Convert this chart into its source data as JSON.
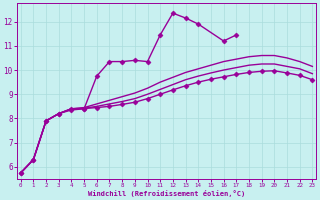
{
  "xlabel": "Windchill (Refroidissement éolien,°C)",
  "bg_color": "#c8f0f0",
  "grid_color": "#aadddd",
  "line_color": "#990099",
  "x_ticks": [
    0,
    1,
    2,
    3,
    4,
    5,
    6,
    7,
    8,
    9,
    10,
    11,
    12,
    13,
    14,
    15,
    16,
    17,
    18,
    19,
    20,
    21,
    22,
    23
  ],
  "y_ticks": [
    6,
    7,
    8,
    9,
    10,
    11,
    12
  ],
  "xlim": [
    -0.3,
    23.3
  ],
  "ylim": [
    5.5,
    12.75
  ],
  "lines": [
    {
      "x": [
        0,
        1,
        2,
        3,
        4,
        5,
        6,
        7,
        8,
        9,
        10,
        11,
        12,
        13,
        14,
        16,
        17
      ],
      "y": [
        5.75,
        6.3,
        7.9,
        8.2,
        8.35,
        8.4,
        9.75,
        10.35,
        10.35,
        10.4,
        10.35,
        11.45,
        12.35,
        12.15,
        11.9,
        11.2,
        11.45
      ],
      "marker": "D",
      "markersize": 2.5,
      "linewidth": 1.0
    },
    {
      "x": [
        0,
        1,
        2,
        3,
        4,
        5,
        6,
        7,
        8,
        9,
        10,
        11,
        12,
        13,
        14,
        15,
        16,
        17,
        18,
        19,
        20,
        21,
        22,
        23
      ],
      "y": [
        5.75,
        6.3,
        7.9,
        8.2,
        8.4,
        8.45,
        8.6,
        8.75,
        8.9,
        9.05,
        9.25,
        9.5,
        9.7,
        9.9,
        10.05,
        10.2,
        10.35,
        10.45,
        10.55,
        10.6,
        10.6,
        10.5,
        10.35,
        10.15
      ],
      "marker": null,
      "linewidth": 1.0
    },
    {
      "x": [
        0,
        1,
        2,
        3,
        4,
        5,
        6,
        7,
        8,
        9,
        10,
        11,
        12,
        13,
        14,
        15,
        16,
        17,
        18,
        19,
        20,
        21,
        22,
        23
      ],
      "y": [
        5.75,
        6.3,
        7.9,
        8.2,
        8.4,
        8.42,
        8.5,
        8.6,
        8.7,
        8.82,
        9.0,
        9.2,
        9.4,
        9.6,
        9.75,
        9.88,
        10.0,
        10.1,
        10.2,
        10.25,
        10.25,
        10.15,
        10.05,
        9.85
      ],
      "marker": null,
      "linewidth": 1.0
    },
    {
      "x": [
        0,
        1,
        2,
        3,
        4,
        5,
        6,
        7,
        8,
        9,
        10,
        11,
        12,
        13,
        14,
        15,
        16,
        17,
        18,
        19,
        20,
        21,
        22,
        23
      ],
      "y": [
        5.75,
        6.3,
        7.9,
        8.2,
        8.4,
        8.41,
        8.45,
        8.5,
        8.58,
        8.67,
        8.82,
        9.0,
        9.18,
        9.35,
        9.5,
        9.62,
        9.72,
        9.82,
        9.9,
        9.95,
        9.97,
        9.88,
        9.78,
        9.6
      ],
      "marker": "D",
      "markersize": 2.5,
      "linewidth": 1.0
    }
  ]
}
